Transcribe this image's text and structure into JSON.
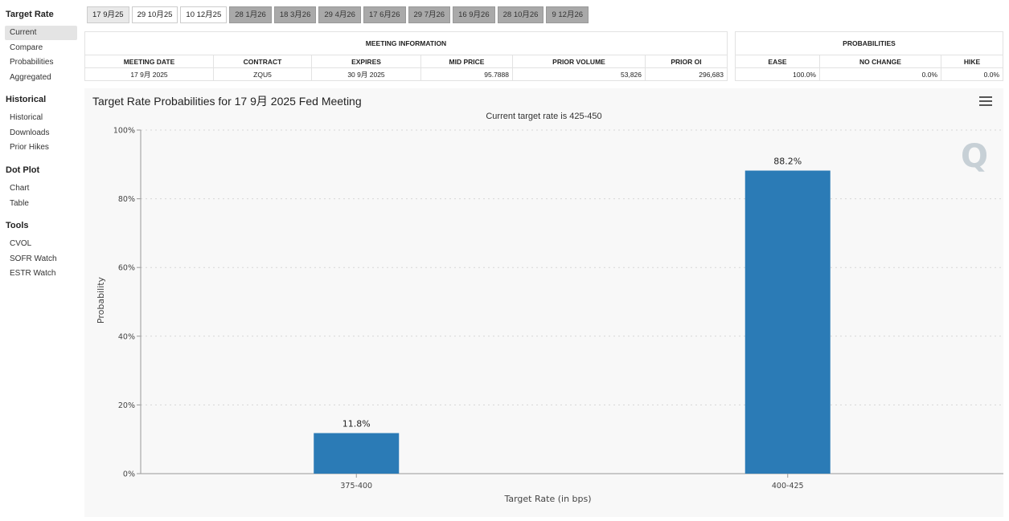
{
  "sidebar": {
    "sections": [
      {
        "title": "Target Rate",
        "items": [
          "Current",
          "Compare",
          "Probabilities",
          "Aggregated"
        ]
      },
      {
        "title": "Historical",
        "items": [
          "Historical",
          "Downloads",
          "Prior Hikes"
        ]
      },
      {
        "title": "Dot Plot",
        "items": [
          "Chart",
          "Table"
        ]
      },
      {
        "title": "Tools",
        "items": [
          "CVOL",
          "SOFR Watch",
          "ESTR Watch"
        ]
      }
    ],
    "active_item": "Current"
  },
  "tabs": [
    {
      "label": "17 9月25",
      "state": "selected"
    },
    {
      "label": "29 10月25",
      "state": "normal"
    },
    {
      "label": "10 12月25",
      "state": "normal"
    },
    {
      "label": "28 1月26",
      "state": "disabled"
    },
    {
      "label": "18 3月26",
      "state": "disabled"
    },
    {
      "label": "29 4月26",
      "state": "disabled"
    },
    {
      "label": "17 6月26",
      "state": "disabled"
    },
    {
      "label": "29 7月26",
      "state": "disabled"
    },
    {
      "label": "16 9月26",
      "state": "disabled"
    },
    {
      "label": "28 10月26",
      "state": "disabled"
    },
    {
      "label": "9 12月26",
      "state": "disabled"
    }
  ],
  "meeting_info": {
    "group_label": "MEETING INFORMATION",
    "headers": [
      "MEETING DATE",
      "CONTRACT",
      "EXPIRES",
      "MID PRICE",
      "PRIOR VOLUME",
      "PRIOR OI"
    ],
    "row": [
      "17 9月 2025",
      "ZQU5",
      "30 9月 2025",
      "95.7888",
      "53,826",
      "296,683"
    ]
  },
  "probabilities": {
    "group_label": "PROBABILITIES",
    "headers": [
      "EASE",
      "NO CHANGE",
      "HIKE"
    ],
    "row": [
      "100.0%",
      "0.0%",
      "0.0%"
    ]
  },
  "chart": {
    "title": "Target Rate Probabilities for 17 9月 2025 Fed Meeting",
    "subtitle": "Current target rate is 425-450",
    "bar_color": "#2b7bb6"
  },
  "chart_data": {
    "type": "bar",
    "title": "Target Rate Probabilities for 17 9月 2025 Fed Meeting",
    "subtitle": "Current target rate is 425-450",
    "categories": [
      "375-400",
      "400-425"
    ],
    "values": [
      11.8,
      88.2
    ],
    "data_labels": [
      "11.8%",
      "88.2%"
    ],
    "xlabel": "Target Rate (in bps)",
    "ylabel": "Probability",
    "ylim": [
      0,
      100
    ],
    "yticks": [
      "0%",
      "20%",
      "40%",
      "60%",
      "80%",
      "100%"
    ],
    "grid": true
  }
}
